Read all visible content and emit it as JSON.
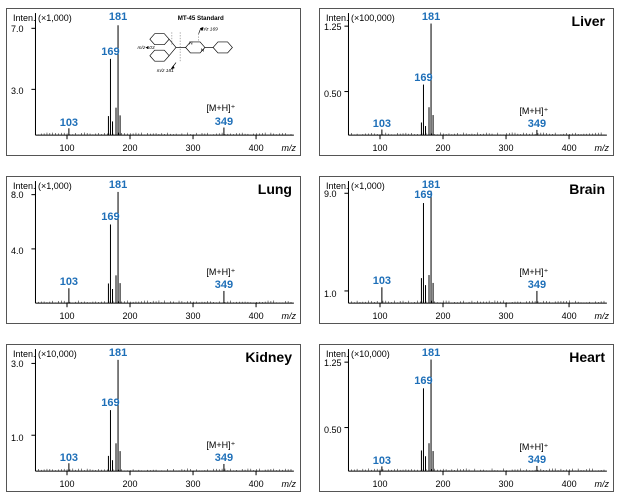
{
  "layout": {
    "rows": 3,
    "cols": 2,
    "panel_border_color": "#555555"
  },
  "xaxis": {
    "min": 50,
    "max": 460,
    "ticks": [
      100,
      200,
      300,
      400
    ],
    "label": "m/z",
    "label_fontstyle": "italic"
  },
  "peak_label_color": "#1e6fb8",
  "peak_label_fontsize": 11,
  "tick_fontsize": 9,
  "common_peaks": {
    "p103": {
      "mz": 103,
      "label": "103"
    },
    "p169": {
      "mz": 169,
      "label": "169"
    },
    "p181": {
      "mz": 181,
      "label": "181"
    },
    "p349": {
      "mz": 349,
      "label": "349"
    }
  },
  "mh_label": "[M+H]⁺",
  "panels": [
    {
      "id": "standard",
      "sample": "",
      "has_structure": true,
      "structure_title": "MT-45 Standard",
      "inten_scale": "Inten. (×1,000)",
      "yticks": [
        3.0,
        7.0
      ],
      "ymax": 8.0,
      "peaks": {
        "p103": 0.45,
        "p169": 5.0,
        "p181": 7.2,
        "p349": 0.5
      }
    },
    {
      "id": "liver",
      "sample": "Liver",
      "inten_scale": "Inten. (×100,000)",
      "yticks": [
        0.5,
        1.25
      ],
      "ymax": 1.4,
      "peaks": {
        "p103": 0.065,
        "p169": 0.58,
        "p181": 1.28,
        "p349": 0.06
      }
    },
    {
      "id": "lung",
      "sample": "Lung",
      "inten_scale": "Inten. (×1,000)",
      "yticks": [
        4.0,
        8.0
      ],
      "ymax": 9.0,
      "peaks": {
        "p103": 1.1,
        "p169": 5.8,
        "p181": 8.2,
        "p349": 0.9
      }
    },
    {
      "id": "brain",
      "sample": "Brain",
      "inten_scale": "Inten. (×1,000)",
      "yticks": [
        1.0,
        9.0
      ],
      "ymax": 10.0,
      "peaks": {
        "p103": 1.3,
        "p169": 8.2,
        "p181": 9.2,
        "p349": 1.0
      }
    },
    {
      "id": "kidney",
      "sample": "Kidney",
      "inten_scale": "Inten. (×10,000)",
      "yticks": [
        1.0,
        3.0
      ],
      "ymax": 3.4,
      "peaks": {
        "p103": 0.22,
        "p169": 1.7,
        "p181": 3.1,
        "p349": 0.2
      }
    },
    {
      "id": "heart",
      "sample": "Heart",
      "inten_scale": "Inten. (×10,000)",
      "yticks": [
        0.5,
        1.25
      ],
      "ymax": 1.4,
      "peaks": {
        "p103": 0.055,
        "p169": 0.95,
        "p181": 1.28,
        "p349": 0.06
      }
    }
  ],
  "structure_annotations": {
    "mz103": "m/z 103",
    "mz169": "m/z 169",
    "mz181": "m/z 181"
  }
}
